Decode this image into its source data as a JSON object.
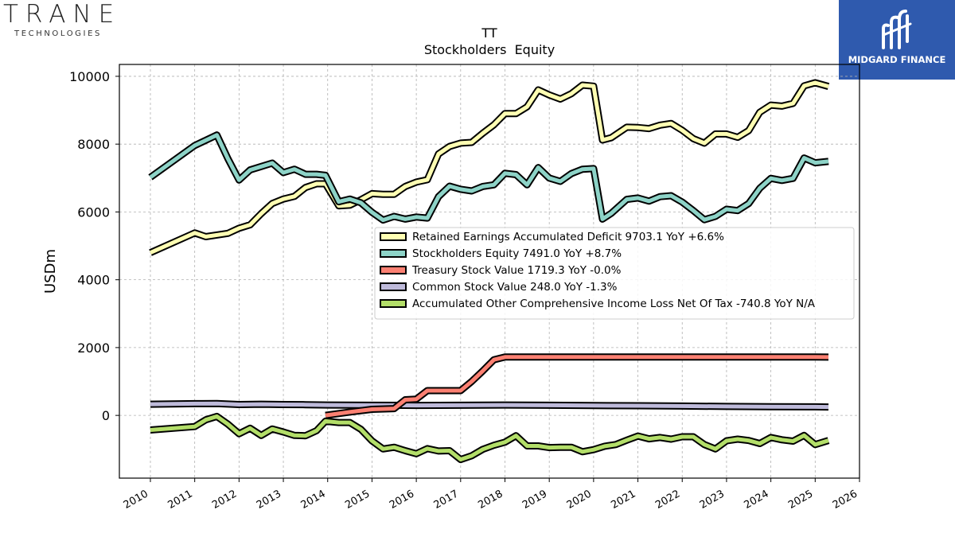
{
  "branding": {
    "left_logo": {
      "icon": "trane-technologies-logo",
      "wordmark": "TRANE",
      "subline": "TECHNOLOGIES"
    },
    "right_logo": {
      "icon": "midgard-finance-logo",
      "text": "MIDGARD FINANCE",
      "background": "#2f5aae"
    }
  },
  "chart_data": {
    "type": "line",
    "title": "TT",
    "subtitle": "Stockholders  Equity",
    "xlabel": "",
    "ylabel": "USDm",
    "xlim": [
      2009.3,
      2026.0
    ],
    "ylim": [
      -1850,
      10350
    ],
    "x_ticks": [
      2010,
      2011,
      2012,
      2013,
      2014,
      2015,
      2016,
      2017,
      2018,
      2019,
      2020,
      2021,
      2022,
      2023,
      2024,
      2025,
      2026
    ],
    "y_ticks": [
      0,
      2000,
      4000,
      6000,
      8000,
      10000
    ],
    "grid": true,
    "legend_position": "center-right",
    "series": [
      {
        "name": "Retained Earnings Accumulated Deficit  9703.1 YoY +6.6%",
        "color": "#ffffb3",
        "points": [
          [
            2010.0,
            4800
          ],
          [
            2011.0,
            5380
          ],
          [
            2011.25,
            5270
          ],
          [
            2011.75,
            5370
          ],
          [
            2012.0,
            5520
          ],
          [
            2012.25,
            5620
          ],
          [
            2012.5,
            5950
          ],
          [
            2012.75,
            6250
          ],
          [
            2013.0,
            6380
          ],
          [
            2013.25,
            6460
          ],
          [
            2013.5,
            6720
          ],
          [
            2013.75,
            6830
          ],
          [
            2013.95,
            6830
          ],
          [
            2014.25,
            6180
          ],
          [
            2014.5,
            6200
          ],
          [
            2014.75,
            6360
          ],
          [
            2015.0,
            6540
          ],
          [
            2015.25,
            6520
          ],
          [
            2015.5,
            6520
          ],
          [
            2015.75,
            6750
          ],
          [
            2016.0,
            6880
          ],
          [
            2016.25,
            6950
          ],
          [
            2016.5,
            7710
          ],
          [
            2016.75,
            7930
          ],
          [
            2017.0,
            8030
          ],
          [
            2017.25,
            8050
          ],
          [
            2017.5,
            8320
          ],
          [
            2017.75,
            8570
          ],
          [
            2018.0,
            8900
          ],
          [
            2018.25,
            8900
          ],
          [
            2018.5,
            9100
          ],
          [
            2018.75,
            9600
          ],
          [
            2019.0,
            9450
          ],
          [
            2019.25,
            9330
          ],
          [
            2019.5,
            9490
          ],
          [
            2019.75,
            9740
          ],
          [
            2020.0,
            9710
          ],
          [
            2020.2,
            8120
          ],
          [
            2020.4,
            8190
          ],
          [
            2020.75,
            8500
          ],
          [
            2021.0,
            8490
          ],
          [
            2021.25,
            8460
          ],
          [
            2021.5,
            8560
          ],
          [
            2021.75,
            8610
          ],
          [
            2022.0,
            8410
          ],
          [
            2022.25,
            8160
          ],
          [
            2022.5,
            8030
          ],
          [
            2022.75,
            8300
          ],
          [
            2023.0,
            8300
          ],
          [
            2023.25,
            8200
          ],
          [
            2023.5,
            8400
          ],
          [
            2023.75,
            8940
          ],
          [
            2024.0,
            9150
          ],
          [
            2024.25,
            9120
          ],
          [
            2024.5,
            9200
          ],
          [
            2024.75,
            9720
          ],
          [
            2025.0,
            9810
          ],
          [
            2025.3,
            9703
          ]
        ]
      },
      {
        "name": "Stockholders Equity  7491.0 YoY +8.7%",
        "color": "#8dd3c7",
        "points": [
          [
            2010.0,
            7020
          ],
          [
            2011.0,
            7960
          ],
          [
            2011.5,
            8270
          ],
          [
            2011.75,
            7570
          ],
          [
            2012.0,
            6940
          ],
          [
            2012.25,
            7240
          ],
          [
            2012.5,
            7340
          ],
          [
            2012.75,
            7440
          ],
          [
            2013.0,
            7160
          ],
          [
            2013.25,
            7260
          ],
          [
            2013.5,
            7110
          ],
          [
            2013.75,
            7110
          ],
          [
            2013.95,
            7080
          ],
          [
            2014.25,
            6300
          ],
          [
            2014.5,
            6380
          ],
          [
            2014.75,
            6270
          ],
          [
            2015.0,
            5990
          ],
          [
            2015.25,
            5760
          ],
          [
            2015.5,
            5870
          ],
          [
            2015.75,
            5790
          ],
          [
            2016.0,
            5850
          ],
          [
            2016.25,
            5820
          ],
          [
            2016.5,
            6450
          ],
          [
            2016.75,
            6760
          ],
          [
            2017.0,
            6670
          ],
          [
            2017.25,
            6620
          ],
          [
            2017.5,
            6750
          ],
          [
            2017.75,
            6800
          ],
          [
            2018.0,
            7140
          ],
          [
            2018.25,
            7100
          ],
          [
            2018.5,
            6800
          ],
          [
            2018.75,
            7310
          ],
          [
            2019.0,
            7000
          ],
          [
            2019.25,
            6900
          ],
          [
            2019.5,
            7130
          ],
          [
            2019.75,
            7260
          ],
          [
            2020.0,
            7280
          ],
          [
            2020.2,
            5790
          ],
          [
            2020.4,
            5960
          ],
          [
            2020.75,
            6370
          ],
          [
            2021.0,
            6410
          ],
          [
            2021.25,
            6320
          ],
          [
            2021.5,
            6450
          ],
          [
            2021.75,
            6480
          ],
          [
            2022.0,
            6290
          ],
          [
            2022.25,
            6040
          ],
          [
            2022.5,
            5770
          ],
          [
            2022.75,
            5870
          ],
          [
            2023.0,
            6080
          ],
          [
            2023.25,
            6040
          ],
          [
            2023.5,
            6250
          ],
          [
            2023.75,
            6700
          ],
          [
            2024.0,
            6990
          ],
          [
            2024.25,
            6930
          ],
          [
            2024.5,
            6990
          ],
          [
            2024.75,
            7590
          ],
          [
            2025.0,
            7450
          ],
          [
            2025.3,
            7491
          ]
        ]
      },
      {
        "name": "Treasury Stock Value  1719.3 YoY -0.0%",
        "color": "#fb8072",
        "points": [
          [
            2013.95,
            0
          ],
          [
            2014.5,
            100
          ],
          [
            2015.0,
            180
          ],
          [
            2015.5,
            200
          ],
          [
            2015.75,
            460
          ],
          [
            2016.0,
            480
          ],
          [
            2016.25,
            730
          ],
          [
            2016.5,
            730
          ],
          [
            2016.75,
            730
          ],
          [
            2017.0,
            730
          ],
          [
            2017.25,
            1000
          ],
          [
            2017.5,
            1310
          ],
          [
            2017.75,
            1640
          ],
          [
            2018.0,
            1720
          ],
          [
            2018.5,
            1720
          ],
          [
            2019.0,
            1720
          ],
          [
            2020.0,
            1720
          ],
          [
            2021.0,
            1720
          ],
          [
            2022.0,
            1720
          ],
          [
            2023.0,
            1720
          ],
          [
            2024.0,
            1720
          ],
          [
            2025.0,
            1720
          ],
          [
            2025.3,
            1719.3
          ]
        ]
      },
      {
        "name": "Common Stock Value  248.0 YoY -1.3%",
        "color": "#bebada",
        "points": [
          [
            2010.0,
            330
          ],
          [
            2011.0,
            345
          ],
          [
            2011.5,
            350
          ],
          [
            2012.0,
            320
          ],
          [
            2012.5,
            330
          ],
          [
            2013.0,
            320
          ],
          [
            2013.5,
            315
          ],
          [
            2014.0,
            305
          ],
          [
            2015.0,
            300
          ],
          [
            2016.0,
            295
          ],
          [
            2017.0,
            300
          ],
          [
            2018.0,
            305
          ],
          [
            2019.0,
            300
          ],
          [
            2020.0,
            290
          ],
          [
            2021.0,
            285
          ],
          [
            2022.0,
            275
          ],
          [
            2023.0,
            265
          ],
          [
            2024.0,
            258
          ],
          [
            2025.0,
            252
          ],
          [
            2025.3,
            248
          ]
        ]
      },
      {
        "name": "Accumulated Other Comprehensive Income Loss Net Of Tax  -740.8 YoY N/A",
        "color": "#b3de69",
        "points": [
          [
            2010.0,
            -430
          ],
          [
            2011.0,
            -330
          ],
          [
            2011.25,
            -130
          ],
          [
            2011.5,
            -30
          ],
          [
            2011.75,
            -260
          ],
          [
            2012.0,
            -540
          ],
          [
            2012.25,
            -380
          ],
          [
            2012.5,
            -590
          ],
          [
            2012.75,
            -400
          ],
          [
            2013.0,
            -490
          ],
          [
            2013.25,
            -590
          ],
          [
            2013.5,
            -600
          ],
          [
            2013.75,
            -450
          ],
          [
            2013.95,
            -170
          ],
          [
            2014.25,
            -210
          ],
          [
            2014.5,
            -210
          ],
          [
            2014.75,
            -410
          ],
          [
            2015.0,
            -750
          ],
          [
            2015.25,
            -990
          ],
          [
            2015.5,
            -940
          ],
          [
            2015.75,
            -1040
          ],
          [
            2016.0,
            -1130
          ],
          [
            2016.25,
            -980
          ],
          [
            2016.5,
            -1050
          ],
          [
            2016.75,
            -1040
          ],
          [
            2017.0,
            -1300
          ],
          [
            2017.25,
            -1190
          ],
          [
            2017.5,
            -1000
          ],
          [
            2017.75,
            -880
          ],
          [
            2018.0,
            -790
          ],
          [
            2018.25,
            -600
          ],
          [
            2018.5,
            -900
          ],
          [
            2018.75,
            -900
          ],
          [
            2019.0,
            -950
          ],
          [
            2019.25,
            -940
          ],
          [
            2019.5,
            -940
          ],
          [
            2019.75,
            -1070
          ],
          [
            2020.0,
            -1010
          ],
          [
            2020.25,
            -910
          ],
          [
            2020.5,
            -860
          ],
          [
            2020.75,
            -730
          ],
          [
            2021.0,
            -610
          ],
          [
            2021.25,
            -690
          ],
          [
            2021.5,
            -650
          ],
          [
            2021.75,
            -700
          ],
          [
            2022.0,
            -630
          ],
          [
            2022.25,
            -630
          ],
          [
            2022.5,
            -860
          ],
          [
            2022.75,
            -990
          ],
          [
            2023.0,
            -750
          ],
          [
            2023.25,
            -700
          ],
          [
            2023.5,
            -740
          ],
          [
            2023.75,
            -830
          ],
          [
            2024.0,
            -650
          ],
          [
            2024.25,
            -720
          ],
          [
            2024.5,
            -760
          ],
          [
            2024.75,
            -590
          ],
          [
            2025.0,
            -860
          ],
          [
            2025.3,
            -741
          ]
        ]
      }
    ]
  }
}
